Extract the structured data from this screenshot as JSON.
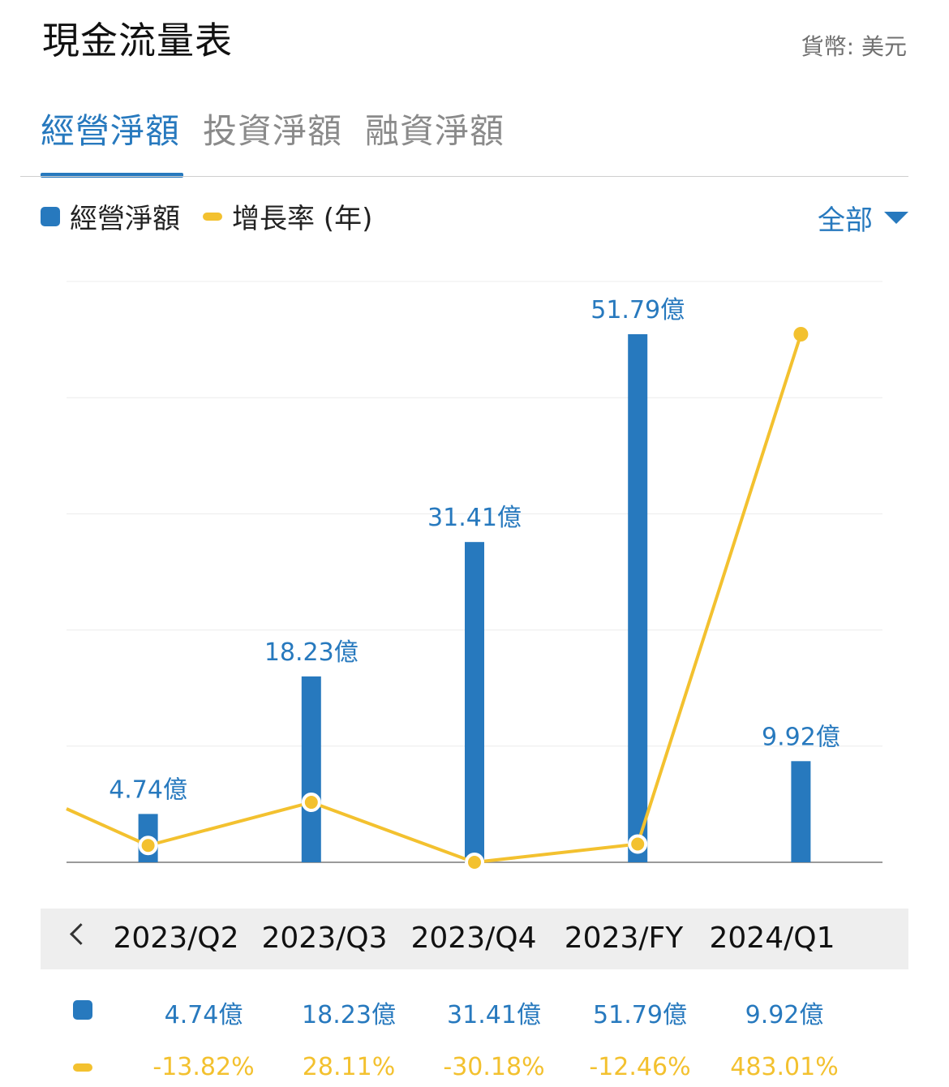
{
  "header": {
    "title": "現金流量表",
    "currency": "貨幣: 美元"
  },
  "tabs": [
    {
      "label": "經營淨額",
      "active": true
    },
    {
      "label": "投資淨額",
      "active": false
    },
    {
      "label": "融資淨額",
      "active": false
    }
  ],
  "legend": {
    "bar_label": "經營淨額",
    "line_label": "增長率 (年)"
  },
  "filter": {
    "label": "全部"
  },
  "colors": {
    "bar": "#2779be",
    "line": "#f3c12f",
    "accent": "#2779be"
  },
  "chart_data": {
    "type": "bar",
    "categories": [
      "2023/Q2",
      "2023/Q3",
      "2023/Q4",
      "2023/FY",
      "2024/Q1"
    ],
    "series": [
      {
        "name": "經營淨額",
        "type": "bar",
        "values": [
          4.74,
          18.23,
          31.41,
          51.79,
          9.92
        ],
        "labels": [
          "4.74億",
          "18.23億",
          "31.41億",
          "51.79億",
          "9.92億"
        ]
      },
      {
        "name": "增長率 (年)",
        "type": "line",
        "values": [
          -13.82,
          28.11,
          -30.18,
          -12.46,
          483.01
        ],
        "labels": [
          "-13.82%",
          "28.11%",
          "-30.18%",
          "-12.46%",
          "483.01%"
        ]
      }
    ],
    "grid": true
  },
  "table": {
    "amounts": [
      "4.74億",
      "18.23億",
      "31.41億",
      "51.79億",
      "9.92億"
    ],
    "growth": [
      "-13.82%",
      "28.11%",
      "-30.18%",
      "-12.46%",
      "483.01%"
    ]
  }
}
